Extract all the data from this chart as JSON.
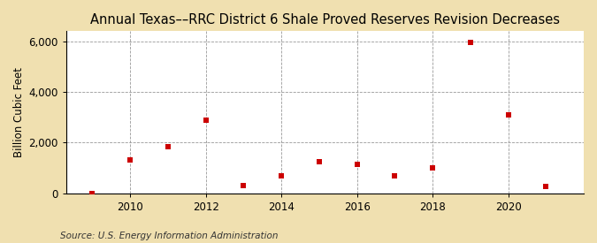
{
  "title": "Annual Texas––RRC District 6 Shale Proved Reserves Revision Decreases",
  "ylabel": "Billion Cubic Feet",
  "source": "Source: U.S. Energy Information Administration",
  "years": [
    2009,
    2010,
    2011,
    2012,
    2013,
    2014,
    2015,
    2016,
    2017,
    2018,
    2019,
    2020,
    2021
  ],
  "values": [
    5,
    1300,
    1850,
    2900,
    300,
    700,
    1250,
    1150,
    680,
    1000,
    5960,
    3100,
    280
  ],
  "marker_color": "#cc0000",
  "marker_size": 5,
  "background_color": "#f0e0b0",
  "plot_bg_color": "#ffffff",
  "grid_color": "#999999",
  "ylim": [
    0,
    6400
  ],
  "yticks": [
    0,
    2000,
    4000,
    6000
  ],
  "ytick_labels": [
    "0",
    "2,000",
    "4,000",
    "6,000"
  ],
  "xticks": [
    2010,
    2012,
    2014,
    2016,
    2018,
    2020
  ],
  "xlim": [
    2008.3,
    2022.0
  ],
  "title_fontsize": 10.5,
  "label_fontsize": 8.5,
  "source_fontsize": 7.5
}
